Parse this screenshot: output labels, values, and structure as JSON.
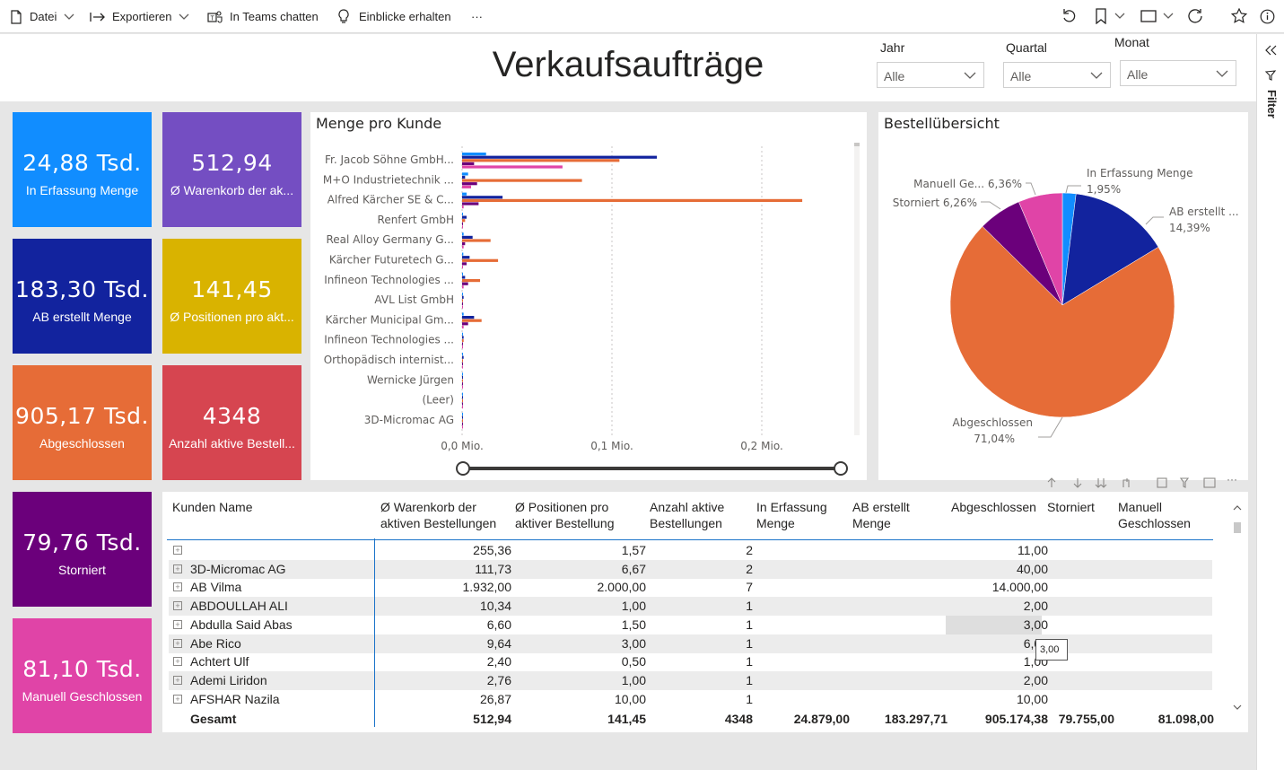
{
  "toolbar": {
    "file": "Datei",
    "export": "Exportieren",
    "teams": "In Teams chatten",
    "insights": "Einblicke erhalten",
    "more": "···"
  },
  "header": {
    "title": "Verkaufsaufträge",
    "slicers": [
      {
        "label": "Jahr",
        "value": "Alle"
      },
      {
        "label": "Quartal",
        "value": "Alle"
      },
      {
        "label": "Monat",
        "value": "Alle"
      }
    ]
  },
  "filter_pane": {
    "label": "Filter"
  },
  "cards": [
    {
      "value": "24,88 Tsd.",
      "label": "In Erfassung Menge",
      "color": "#118dff"
    },
    {
      "value": "512,94",
      "label": "Ø Warenkorb der ak...",
      "color": "#744ec2"
    },
    {
      "value": "183,30 Tsd.",
      "label": "AB erstellt Menge",
      "color": "#12239e"
    },
    {
      "value": "141,45",
      "label": "Ø Positionen pro akt...",
      "color": "#d9b300"
    },
    {
      "value": "905,17 Tsd.",
      "label": "Abgeschlossen",
      "color": "#e66c37"
    },
    {
      "value": "4348",
      "label": "Anzahl aktive Bestell...",
      "color": "#d64550"
    },
    {
      "value": "79,76 Tsd.",
      "label": "Storniert",
      "color": "#6b007b"
    },
    {
      "value": "81,10 Tsd.",
      "label": "Manuell Geschlossen",
      "color": "#e044a7"
    }
  ],
  "chart_data": [
    {
      "type": "bar",
      "orientation": "horizontal",
      "title": "Menge pro Kunde",
      "categories": [
        "Fr. Jacob Söhne GmbH...",
        "M+O Industrietechnik ...",
        "Alfred Kärcher SE & C...",
        "Renfert GmbH",
        "Real Alloy Germany G...",
        "Kärcher Futuretech G...",
        "Infineon Technologies ...",
        "AVL List GmbH",
        "Kärcher Municipal Gm...",
        "Infineon Technologies ...",
        "Orthopädisch internist...",
        "Wernicke Jürgen",
        "(Leer)",
        "3D-Micromac AG"
      ],
      "series": [
        {
          "name": "In Erfassung Menge",
          "color": "#118dff",
          "values": [
            16000,
            4000,
            3000,
            500,
            1000,
            800,
            500,
            0,
            1000,
            400,
            100,
            100,
            100,
            100
          ]
        },
        {
          "name": "AB erstellt Menge",
          "color": "#12239e",
          "values": [
            130000,
            2000,
            27000,
            3000,
            7000,
            5000,
            2000,
            1000,
            8000,
            1000,
            1000,
            500,
            300,
            300
          ]
        },
        {
          "name": "Abgeschlossen",
          "color": "#e66c37",
          "values": [
            105000,
            80000,
            227000,
            2000,
            19000,
            24000,
            12000,
            500,
            13000,
            1000,
            500,
            500,
            300,
            300
          ]
        },
        {
          "name": "Storniert",
          "color": "#6b007b",
          "values": [
            8000,
            10000,
            11000,
            500,
            2000,
            3000,
            4000,
            200,
            4000,
            500,
            200,
            100,
            100,
            100
          ]
        },
        {
          "name": "Manuell Geschlossen",
          "color": "#e044a7",
          "values": [
            67000,
            6000,
            1000,
            300,
            1000,
            500,
            1000,
            100,
            1000,
            300,
            100,
            100,
            100,
            100
          ]
        }
      ],
      "x_ticks": [
        "0,0 Mio.",
        "0,1 Mio.",
        "0,2 Mio."
      ],
      "x_tick_values": [
        0,
        100000,
        200000
      ],
      "xlim": [
        0,
        250000
      ]
    },
    {
      "type": "pie",
      "title": "Bestellübersicht",
      "slices": [
        {
          "label": "In Erfassung Menge",
          "display": "In Erfassung Menge",
          "pct_text": "1,95%",
          "value": 1.95,
          "color": "#118dff"
        },
        {
          "label": "AB erstellt Menge",
          "display": "AB erstellt ...",
          "pct_text": "14,39%",
          "value": 14.39,
          "color": "#12239e"
        },
        {
          "label": "Abgeschlossen",
          "display": "Abgeschlossen",
          "pct_text": "71,04%",
          "value": 71.04,
          "color": "#e66c37"
        },
        {
          "label": "Storniert",
          "display": "Storniert",
          "pct_text": "6,26%",
          "value": 6.26,
          "color": "#6b007b"
        },
        {
          "label": "Manuell Geschlossen",
          "display": "Manuell Ge...",
          "pct_text": "6,36%",
          "value": 6.36,
          "color": "#e044a7"
        }
      ]
    }
  ],
  "table": {
    "headers": [
      "Kunden Name",
      "Ø Warenkorb der aktiven Bestellungen",
      "Ø Positionen pro aktiver Bestellung",
      "Anzahl aktive Bestellungen",
      "In Erfassung Menge",
      "AB erstellt Menge",
      "Abgeschlossen",
      "Storniert",
      "Manuell Geschlossen"
    ],
    "header_lines": [
      [
        "Kunden Name",
        ""
      ],
      [
        "Ø Warenkorb der",
        "aktiven Bestellungen"
      ],
      [
        "Ø Positionen pro",
        "aktiver Bestellung"
      ],
      [
        "Anzahl aktive",
        "Bestellungen"
      ],
      [
        "In Erfassung",
        "Menge"
      ],
      [
        "AB erstellt",
        "Menge"
      ],
      [
        "Abgeschlossen",
        ""
      ],
      [
        "Storniert",
        ""
      ],
      [
        "Manuell",
        "Geschlossen"
      ]
    ],
    "rows": [
      {
        "name": "",
        "warenkorb": "255,36",
        "positionen": "1,57",
        "anzahl": "2",
        "erfassung": "",
        "ab": "",
        "abgeschlossen": "11,00",
        "storniert": "",
        "manuell": ""
      },
      {
        "name": "3D-Micromac AG",
        "warenkorb": "111,73",
        "positionen": "6,67",
        "anzahl": "2",
        "erfassung": "",
        "ab": "",
        "abgeschlossen": "40,00",
        "storniert": "",
        "manuell": ""
      },
      {
        "name": "AB Vilma",
        "warenkorb": "1.932,00",
        "positionen": "2.000,00",
        "anzahl": "7",
        "erfassung": "",
        "ab": "",
        "abgeschlossen": "14.000,00",
        "storniert": "",
        "manuell": ""
      },
      {
        "name": "ABDOULLAH ALI",
        "warenkorb": "10,34",
        "positionen": "1,00",
        "anzahl": "1",
        "erfassung": "",
        "ab": "",
        "abgeschlossen": "2,00",
        "storniert": "",
        "manuell": ""
      },
      {
        "name": "Abdulla Said Abas",
        "warenkorb": "6,60",
        "positionen": "1,50",
        "anzahl": "1",
        "erfassung": "",
        "ab": "",
        "abgeschlossen": "3,00",
        "storniert": "",
        "manuell": ""
      },
      {
        "name": "Abe Rico",
        "warenkorb": "9,64",
        "positionen": "3,00",
        "anzahl": "1",
        "erfassung": "",
        "ab": "",
        "abgeschlossen": "6,00",
        "storniert": "",
        "manuell": ""
      },
      {
        "name": "Achtert Ulf",
        "warenkorb": "2,40",
        "positionen": "0,50",
        "anzahl": "1",
        "erfassung": "",
        "ab": "",
        "abgeschlossen": "1,00",
        "storniert": "",
        "manuell": ""
      },
      {
        "name": "Ademi Liridon",
        "warenkorb": "2,76",
        "positionen": "1,00",
        "anzahl": "1",
        "erfassung": "",
        "ab": "",
        "abgeschlossen": "2,00",
        "storniert": "",
        "manuell": ""
      },
      {
        "name": "AFSHAR Nazila",
        "warenkorb": "26,87",
        "positionen": "10,00",
        "anzahl": "1",
        "erfassung": "",
        "ab": "",
        "abgeschlossen": "10,00",
        "storniert": "",
        "manuell": ""
      }
    ],
    "total": {
      "name": "Gesamt",
      "warenkorb": "512,94",
      "positionen": "141,45",
      "anzahl": "4348",
      "erfassung": "24.879,00",
      "ab": "183.297,71",
      "abgeschlossen": "905.174,38",
      "storniert": "79.755,00",
      "manuell": "81.098,00"
    },
    "tooltip": "3,00"
  }
}
